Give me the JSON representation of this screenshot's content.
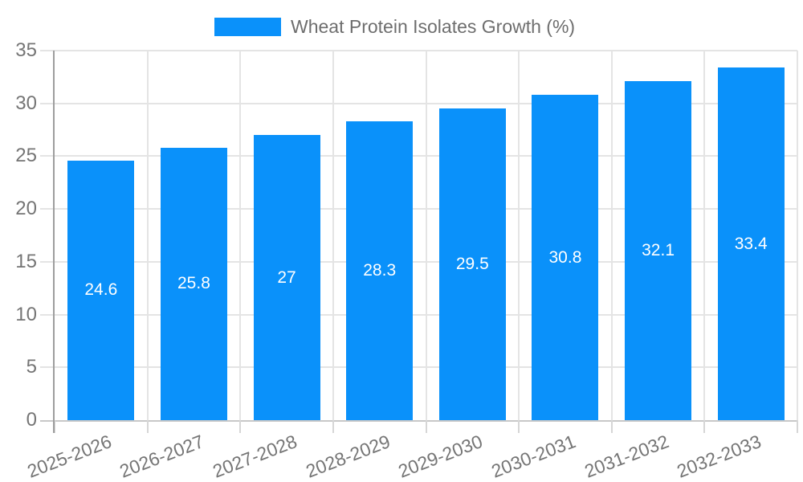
{
  "legend": {
    "label": "Wheat Protein Isolates Growth (%)"
  },
  "colors": {
    "bar": "#0a91fa",
    "axis_line": "#9e9e9e",
    "gridline": "#e4e4e4",
    "baseline": "#c8c8c8",
    "tick": "#d6d6d6",
    "tick_label": "#757575",
    "bar_label": "#ffffff",
    "background": "#ffffff"
  },
  "chart_data": {
    "type": "bar",
    "title": "Wheat Protein Isolates Growth (%)",
    "series_name": "Wheat Protein Isolates Growth (%)",
    "categories": [
      "2025-2026",
      "2026-2027",
      "2027-2028",
      "2028-2029",
      "2029-2030",
      "2030-2031",
      "2031-2032",
      "2032-2033"
    ],
    "values": [
      24.6,
      25.8,
      27,
      28.3,
      29.5,
      30.8,
      32.1,
      33.4
    ],
    "xlabel": "",
    "ylabel": "",
    "ylim": [
      0,
      35
    ],
    "yticks": [
      0,
      5,
      10,
      15,
      20,
      25,
      30,
      35
    ],
    "grid": true,
    "legend_position": "top-center",
    "bar_labels": "inside-center",
    "x_tick_rotation_deg": -21
  }
}
